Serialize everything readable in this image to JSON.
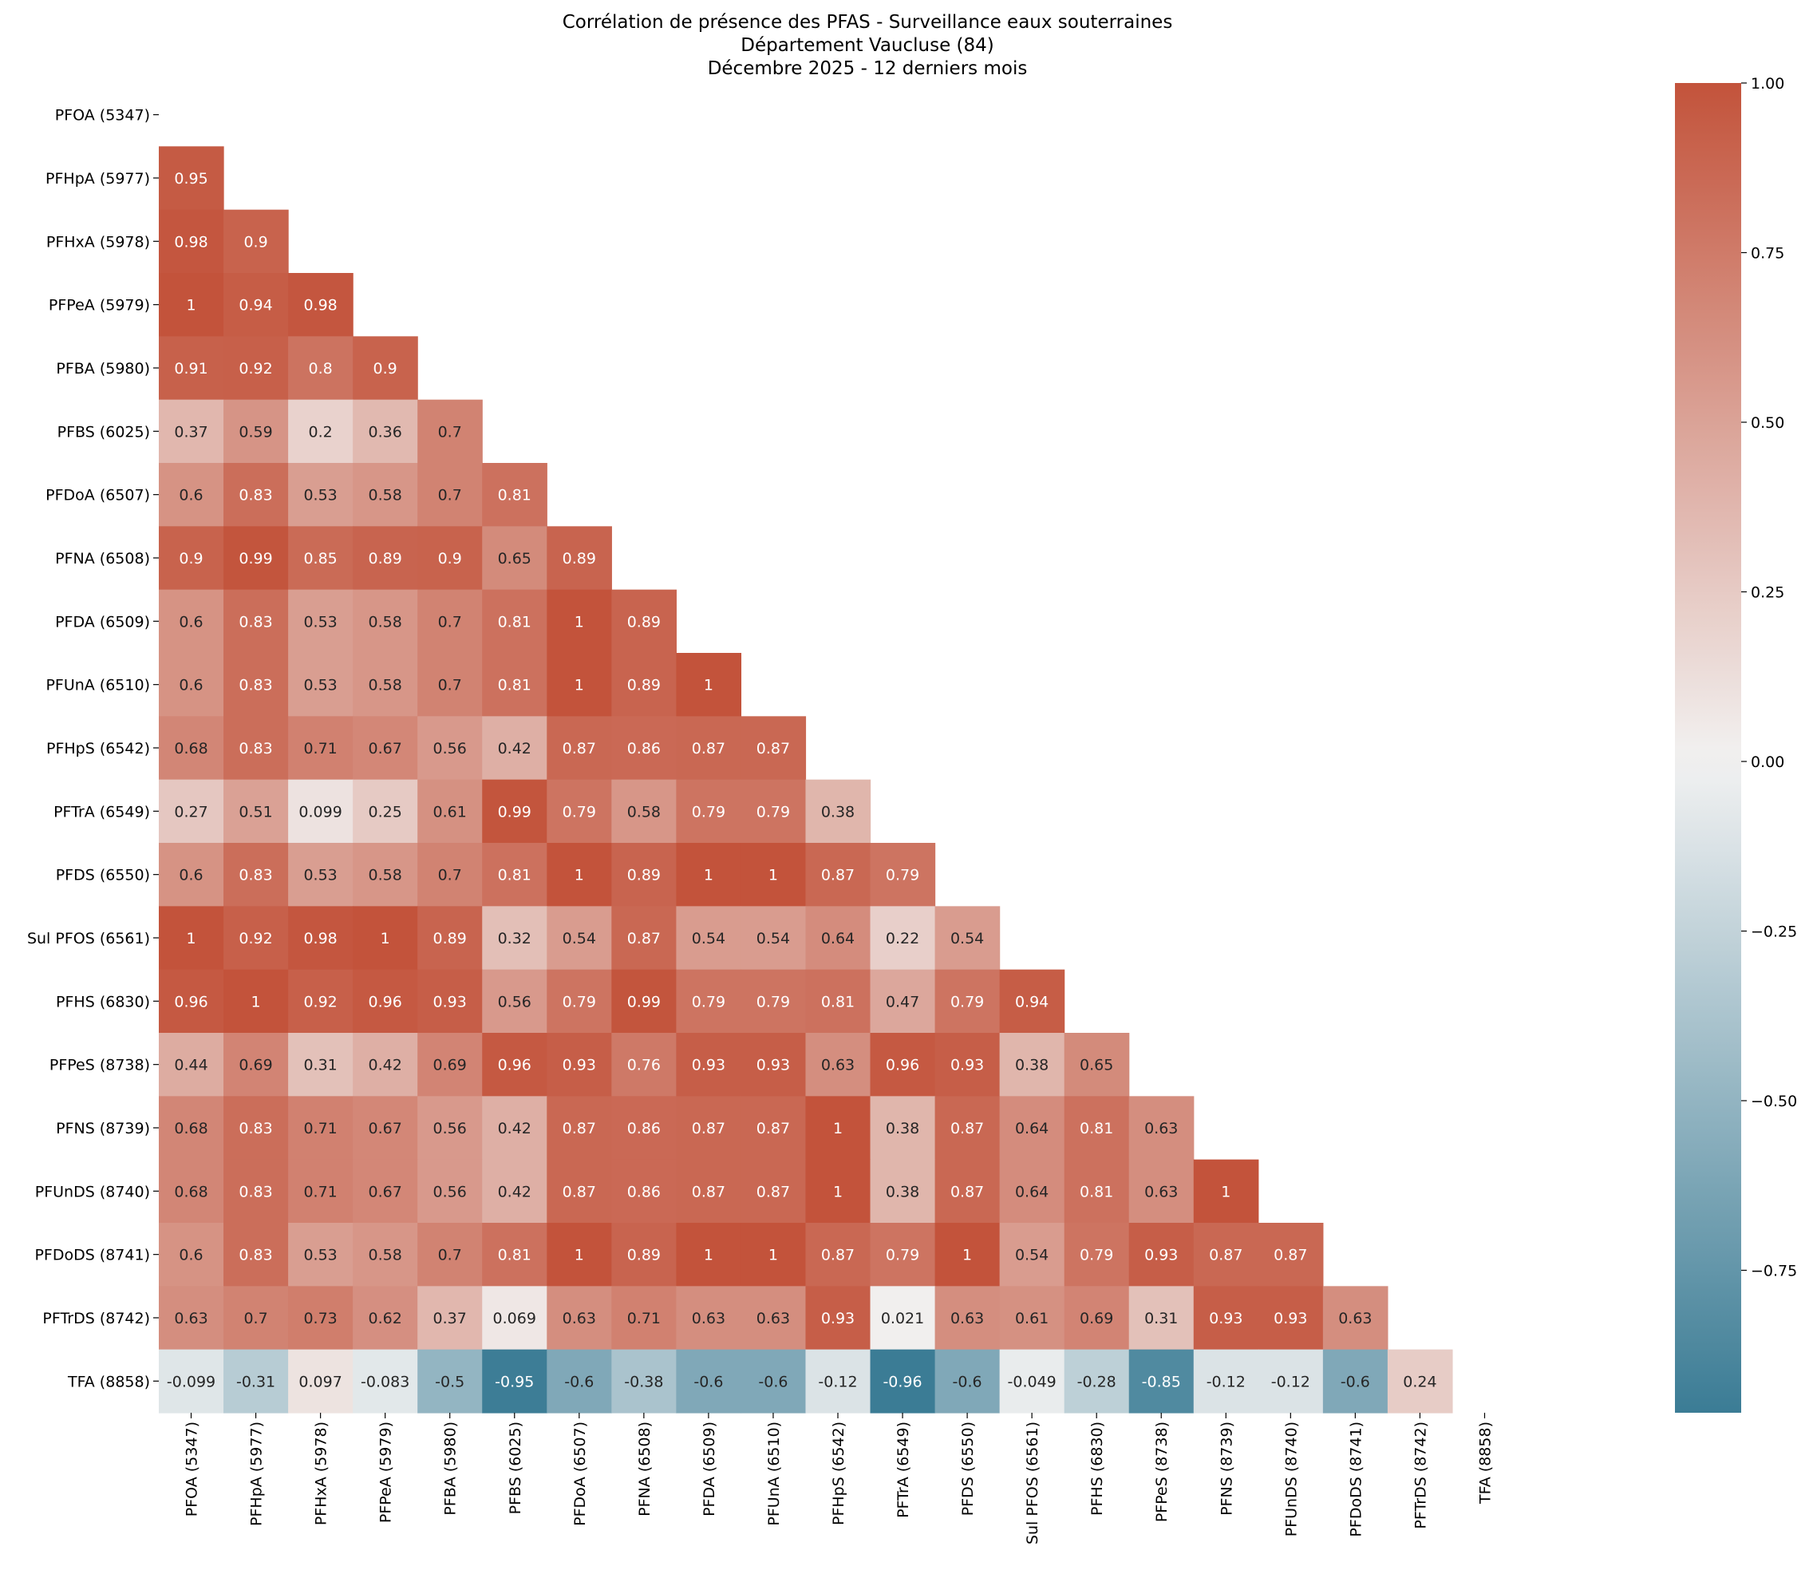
{
  "chart_data": {
    "type": "heatmap",
    "title_lines": [
      "Corrélation de présence des PFAS - Surveillance eaux souterraines",
      "Département Vaucluse (84)",
      "Décembre 2025 - 12 derniers mois"
    ],
    "labels": [
      "PFOA (5347)",
      "PFHpA (5977)",
      "PFHxA (5978)",
      "PFPeA (5979)",
      "PFBA (5980)",
      "PFBS (6025)",
      "PFDoA (6507)",
      "PFNA (6508)",
      "PFDA (6509)",
      "PFUnA (6510)",
      "PFHpS (6542)",
      "PFTrA (6549)",
      "PFDS (6550)",
      "Sul PFOS (6561)",
      "PFHS (6830)",
      "PFPeS (8738)",
      "PFNS (8739)",
      "PFUnDS (8740)",
      "PFDoDS (8741)",
      "PFTrDS (8742)",
      "TFA (8858)"
    ],
    "matrix_lower": [
      [],
      [
        "0.95"
      ],
      [
        "0.98",
        "0.9"
      ],
      [
        "1",
        "0.94",
        "0.98"
      ],
      [
        "0.91",
        "0.92",
        "0.8",
        "0.9"
      ],
      [
        "0.37",
        "0.59",
        "0.2",
        "0.36",
        "0.7"
      ],
      [
        "0.6",
        "0.83",
        "0.53",
        "0.58",
        "0.7",
        "0.81"
      ],
      [
        "0.9",
        "0.99",
        "0.85",
        "0.89",
        "0.9",
        "0.65",
        "0.89"
      ],
      [
        "0.6",
        "0.83",
        "0.53",
        "0.58",
        "0.7",
        "0.81",
        "1",
        "0.89"
      ],
      [
        "0.6",
        "0.83",
        "0.53",
        "0.58",
        "0.7",
        "0.81",
        "1",
        "0.89",
        "1"
      ],
      [
        "0.68",
        "0.83",
        "0.71",
        "0.67",
        "0.56",
        "0.42",
        "0.87",
        "0.86",
        "0.87",
        "0.87"
      ],
      [
        "0.27",
        "0.51",
        "0.099",
        "0.25",
        "0.61",
        "0.99",
        "0.79",
        "0.58",
        "0.79",
        "0.79",
        "0.38"
      ],
      [
        "0.6",
        "0.83",
        "0.53",
        "0.58",
        "0.7",
        "0.81",
        "1",
        "0.89",
        "1",
        "1",
        "0.87",
        "0.79"
      ],
      [
        "1",
        "0.92",
        "0.98",
        "1",
        "0.89",
        "0.32",
        "0.54",
        "0.87",
        "0.54",
        "0.54",
        "0.64",
        "0.22",
        "0.54"
      ],
      [
        "0.96",
        "1",
        "0.92",
        "0.96",
        "0.93",
        "0.56",
        "0.79",
        "0.99",
        "0.79",
        "0.79",
        "0.81",
        "0.47",
        "0.79",
        "0.94"
      ],
      [
        "0.44",
        "0.69",
        "0.31",
        "0.42",
        "0.69",
        "0.96",
        "0.93",
        "0.76",
        "0.93",
        "0.93",
        "0.63",
        "0.96",
        "0.93",
        "0.38",
        "0.65"
      ],
      [
        "0.68",
        "0.83",
        "0.71",
        "0.67",
        "0.56",
        "0.42",
        "0.87",
        "0.86",
        "0.87",
        "0.87",
        "1",
        "0.38",
        "0.87",
        "0.64",
        "0.81",
        "0.63"
      ],
      [
        "0.68",
        "0.83",
        "0.71",
        "0.67",
        "0.56",
        "0.42",
        "0.87",
        "0.86",
        "0.87",
        "0.87",
        "1",
        "0.38",
        "0.87",
        "0.64",
        "0.81",
        "0.63",
        "1"
      ],
      [
        "0.6",
        "0.83",
        "0.53",
        "0.58",
        "0.7",
        "0.81",
        "1",
        "0.89",
        "1",
        "1",
        "0.87",
        "0.79",
        "1",
        "0.54",
        "0.79",
        "0.93",
        "0.87",
        "0.87"
      ],
      [
        "0.63",
        "0.7",
        "0.73",
        "0.62",
        "0.37",
        "0.069",
        "0.63",
        "0.71",
        "0.63",
        "0.63",
        "0.93",
        "0.021",
        "0.63",
        "0.61",
        "0.69",
        "0.31",
        "0.93",
        "0.93",
        "0.63"
      ],
      [
        "-0.099",
        "-0.31",
        "0.097",
        "-0.083",
        "-0.5",
        "-0.95",
        "-0.6",
        "-0.38",
        "-0.6",
        "-0.6",
        "-0.12",
        "-0.96",
        "-0.6",
        "-0.049",
        "-0.28",
        "-0.85",
        "-0.12",
        "-0.12",
        "-0.6",
        "0.24"
      ]
    ],
    "mask": "upper-triangle-including-diagonal",
    "colormap": {
      "name": "diverging",
      "low_color": "#3b7c95",
      "mid_color": "#f2f2f2",
      "high_color": "#c3533b",
      "vmin": -0.96,
      "vmax": 1.0
    },
    "colorbar": {
      "ticks": [
        1.0,
        0.75,
        0.5,
        0.25,
        0.0,
        -0.25,
        -0.5,
        -0.75
      ],
      "tick_labels": [
        "1.00",
        "0.75",
        "0.50",
        "0.25",
        "0.00",
        "−0.25",
        "−0.50",
        "−0.75"
      ],
      "placement": "right"
    }
  }
}
